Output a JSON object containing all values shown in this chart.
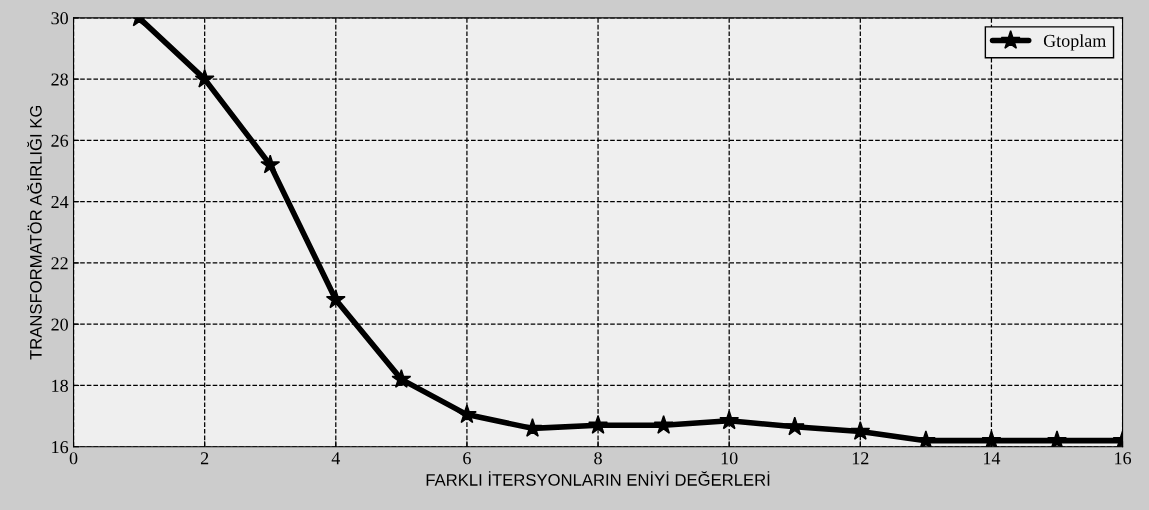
{
  "chart_data": {
    "type": "line",
    "xlabel": "FARKLI İTERSYONLARIN ENİYİ DEĞERLERİ",
    "ylabel": "TRANSFORMATÖR AĞIRLIĞI KG",
    "x": [
      1,
      2,
      3,
      4,
      5,
      6,
      7,
      8,
      9,
      10,
      11,
      12,
      13,
      14,
      15,
      16
    ],
    "series": [
      {
        "name": "Gtoplam",
        "color": "#000000",
        "values": [
          30,
          28,
          25.2,
          20.8,
          18.2,
          17.05,
          16.6,
          16.7,
          16.7,
          16.85,
          16.65,
          16.5,
          16.2,
          16.2,
          16.2,
          16.2
        ]
      }
    ],
    "xlim": [
      0,
      16
    ],
    "xticks": [
      0,
      2,
      4,
      6,
      8,
      10,
      12,
      14,
      16
    ],
    "ylim": [
      16,
      30
    ],
    "yticks": [
      16,
      18,
      20,
      22,
      24,
      26,
      28,
      30
    ],
    "grid": true,
    "legend": "top right",
    "marker": "star",
    "line_style": "solid"
  }
}
